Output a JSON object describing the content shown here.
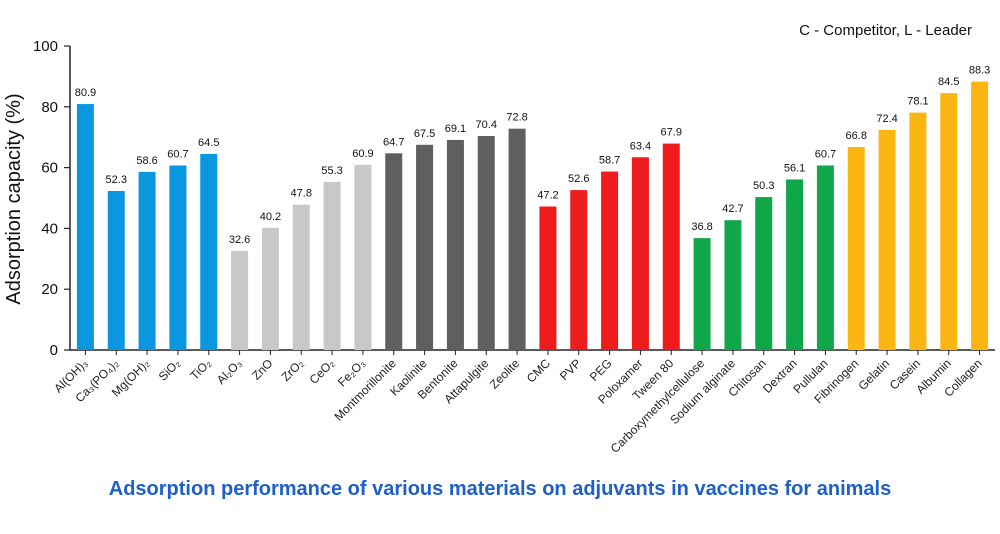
{
  "legend_note": "C - Competitor, L - Leader",
  "chart_data": {
    "type": "bar",
    "title": "Adsorption performance of various materials on adjuvants in vaccines for animals",
    "xlabel": "",
    "ylabel": "Adsorption capacity (%)",
    "ylim": [
      0,
      100
    ],
    "yticks": [
      0,
      20,
      40,
      60,
      80,
      100
    ],
    "grid": false,
    "categories": [
      "Al(OH)₃",
      "Ca₃(PO₄)₂",
      "Mg(OH)₂",
      "SiO₂",
      "TiO₂",
      "Al₂O₃",
      "ZnO",
      "ZrO₂",
      "CeO₂",
      "Fe₂O₃",
      "Montmorillonite",
      "Kaolinite",
      "Bentonite",
      "Attapulgite",
      "Zeolite",
      "CMC",
      "PVP",
      "PEG",
      "Poloxamer",
      "Tween 80",
      "Carboxymethylcellulose",
      "Sodium alginate",
      "Chitosan",
      "Dextran",
      "Pullulan",
      "Fibrinogen",
      "Gelatin",
      "Casein",
      "Albumin",
      "Collagen"
    ],
    "values": [
      80.9,
      52.3,
      58.6,
      60.7,
      64.5,
      32.6,
      40.2,
      47.8,
      55.3,
      60.9,
      64.7,
      67.5,
      69.1,
      70.4,
      72.8,
      47.2,
      52.6,
      58.7,
      63.4,
      67.9,
      36.8,
      42.7,
      50.3,
      56.1,
      60.7,
      66.8,
      72.4,
      78.1,
      84.5,
      88.3
    ],
    "colors": [
      "#0b97e0",
      "#0b97e0",
      "#0b97e0",
      "#0b97e0",
      "#0b97e0",
      "#c8c8c8",
      "#c8c8c8",
      "#c8c8c8",
      "#c8c8c8",
      "#c8c8c8",
      "#5f5f5f",
      "#5f5f5f",
      "#5f5f5f",
      "#5f5f5f",
      "#5f5f5f",
      "#ee1c1c",
      "#ee1c1c",
      "#ee1c1c",
      "#ee1c1c",
      "#ee1c1c",
      "#10a74a",
      "#10a74a",
      "#10a74a",
      "#10a74a",
      "#10a74a",
      "#fbb612",
      "#fbb612",
      "#fbb612",
      "#fbb612",
      "#fbb612"
    ]
  }
}
